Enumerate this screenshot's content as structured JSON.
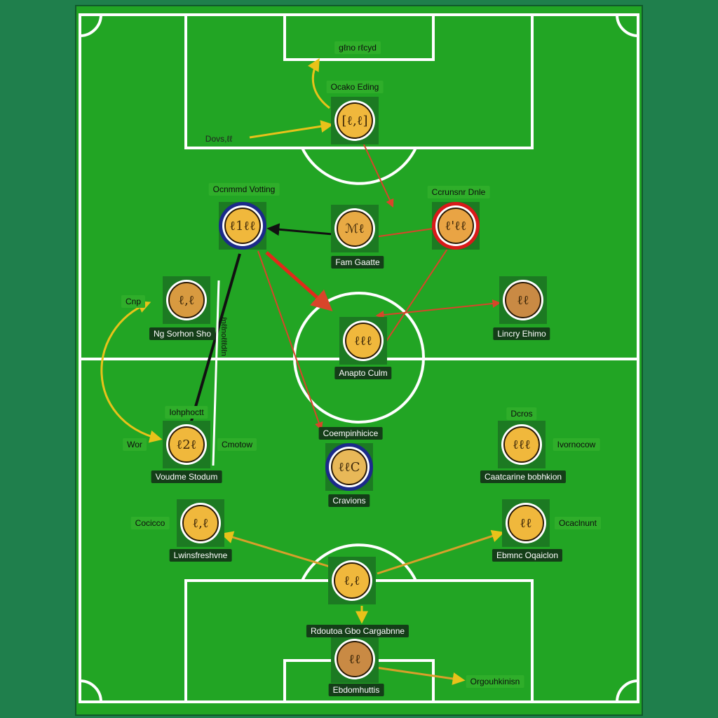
{
  "colors": {
    "outer_background": "#1f7f4c",
    "pitch_grass": "#22a524",
    "pitch_lines": "#ffffff",
    "token_fill": "#f0b83c",
    "token_brown": "#c9823a",
    "ring_blue": "#1b2a8a",
    "ring_red": "#d81a1a",
    "arrow_yellow": "#e8c21a",
    "arrow_red": "#d8452a",
    "arrow_black": "#111111"
  },
  "players": [
    {
      "id": "p1",
      "glyph": "[ℓ,ℓ]",
      "fill": "#f0b83c",
      "ring": "none"
    },
    {
      "id": "p2",
      "glyph": "ℓ1ℓℓ",
      "fill": "#f0b83c",
      "ring": "blue"
    },
    {
      "id": "p3",
      "glyph": "ℳℓ",
      "fill": "#e8aa44",
      "ring": "none"
    },
    {
      "id": "p4",
      "glyph": "ℓ'ℓℓ",
      "fill": "#e9a444",
      "ring": "red"
    },
    {
      "id": "p5",
      "glyph": "ℓ,ℓ",
      "fill": "#d89a40",
      "ring": "none"
    },
    {
      "id": "p6",
      "glyph": "ℓℓ",
      "fill": "#c98a44",
      "ring": "none"
    },
    {
      "id": "p7",
      "glyph": "ℓℓℓ",
      "fill": "#f0b83c",
      "ring": "none"
    },
    {
      "id": "p8",
      "glyph": "ℓ2ℓ",
      "fill": "#f0b83c",
      "ring": "none"
    },
    {
      "id": "p9",
      "glyph": "ℓℓC",
      "fill": "#e8b858",
      "ring": "blue"
    },
    {
      "id": "p10",
      "glyph": "ℓℓℓ",
      "fill": "#f0b83c",
      "ring": "none"
    },
    {
      "id": "p11",
      "glyph": "ℓ,ℓ",
      "fill": "#f0b83c",
      "ring": "none"
    },
    {
      "id": "p12",
      "glyph": "ℓℓ",
      "fill": "#f0b83c",
      "ring": "none"
    },
    {
      "id": "p13",
      "glyph": "ℓ,ℓ",
      "fill": "#f0b83c",
      "ring": "none"
    },
    {
      "id": "p14",
      "glyph": "ℓℓ",
      "fill": "#c98a44",
      "ring": "none"
    }
  ],
  "labels": {
    "top_goal": "gℓno rℓcyd",
    "gk_name": "Ocako Eding",
    "gk_side": "Dovs,ℓℓ",
    "lm_top": "Ocnmmd Votting",
    "rm_top": "Ccrunsnr Dnle",
    "center_top": "Fam Gaatte",
    "left_mid": "Ng Sorhon Sho",
    "left_small": "Cnp",
    "right_mid": "Lincry Ehimo",
    "center_circle": "Anapto Culm",
    "lb_top": "Iohphoctt",
    "lb_left": "Wor",
    "lb_right": "Cmotow",
    "lb_bottom": "Voudme Stodum",
    "cm_top": "Coempinhicice",
    "cm_bottom": "Cravions",
    "rb_top": "Dcros",
    "rb_right": "Ivornocow",
    "rb_bottom": "Caatcarine bobhkion",
    "dl_left": "Cocicco",
    "dl_bottom": "Lwinsfreshvne",
    "dr_right": "Ocaclnunt",
    "dr_bottom": "Ebmnc Oqaiclon",
    "gk_bottom_top": "Rdoutoa Gbo Cargabnne",
    "gk_bottom_right": "Orgouhkinisn",
    "gk_bottom_bottom": "Ebdomhuttis",
    "vertical_text": "ℓnℓℓnoℓℓℓdℓn"
  }
}
